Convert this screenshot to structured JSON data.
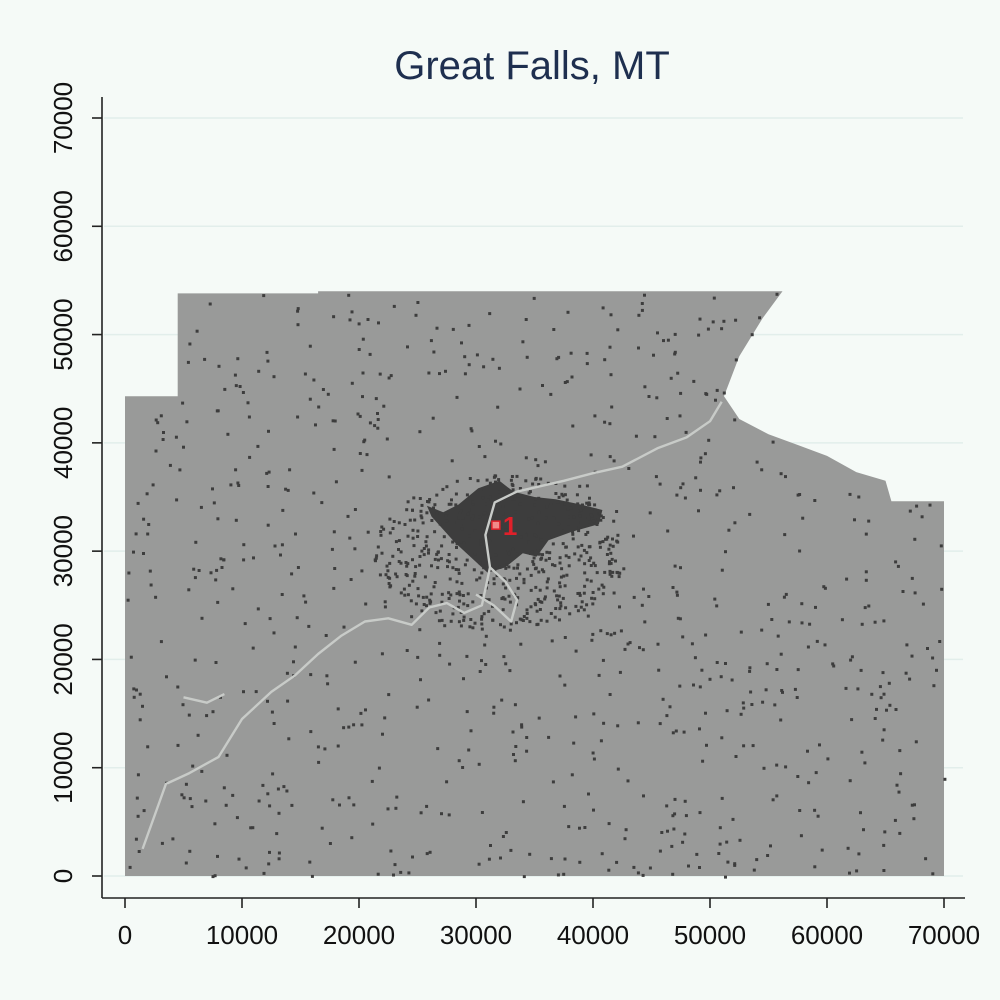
{
  "chart_data": {
    "type": "map",
    "title": "Great Falls, MT",
    "xlim": [
      0,
      70000
    ],
    "ylim": [
      0,
      70000
    ],
    "x_ticks": [
      0,
      10000,
      20000,
      30000,
      40000,
      50000,
      60000,
      70000
    ],
    "y_ticks": [
      0,
      10000,
      20000,
      30000,
      40000,
      50000,
      60000,
      70000
    ],
    "grid": true,
    "region_color": "#999a99",
    "developed_color": "#3d3d3d",
    "water_color": "#c8cbc8",
    "marker_color": "#e0202a",
    "boundary": [
      [
        0,
        44300
      ],
      [
        4500,
        44300
      ],
      [
        4500,
        53800
      ],
      [
        16500,
        53800
      ],
      [
        16500,
        54000
      ],
      [
        56200,
        54000
      ],
      [
        54500,
        51500
      ],
      [
        52500,
        48000
      ],
      [
        51200,
        44300
      ],
      [
        52500,
        42200
      ],
      [
        55000,
        40800
      ],
      [
        57500,
        39800
      ],
      [
        60000,
        38800
      ],
      [
        62500,
        37300
      ],
      [
        65000,
        36500
      ],
      [
        65500,
        34600
      ],
      [
        70000,
        34600
      ],
      [
        70000,
        0
      ],
      [
        0,
        0
      ]
    ],
    "urban_core": [
      [
        25800,
        34200
      ],
      [
        27200,
        33600
      ],
      [
        28500,
        34300
      ],
      [
        30200,
        35800
      ],
      [
        32000,
        36500
      ],
      [
        33200,
        35500
      ],
      [
        35000,
        35000
      ],
      [
        36800,
        34800
      ],
      [
        39000,
        34300
      ],
      [
        40800,
        33800
      ],
      [
        40500,
        32500
      ],
      [
        38200,
        31800
      ],
      [
        36200,
        31000
      ],
      [
        35200,
        29500
      ],
      [
        34000,
        29800
      ],
      [
        32500,
        28500
      ],
      [
        31000,
        28000
      ],
      [
        29500,
        29500
      ],
      [
        28200,
        30800
      ],
      [
        27200,
        32000
      ],
      [
        26200,
        33200
      ]
    ],
    "rivers": [
      [
        [
          1500,
          2500
        ],
        [
          2500,
          5500
        ],
        [
          3500,
          8500
        ],
        [
          5500,
          9500
        ],
        [
          8000,
          11000
        ],
        [
          10000,
          14500
        ],
        [
          12500,
          17000
        ],
        [
          14500,
          18500
        ],
        [
          16500,
          20500
        ],
        [
          18500,
          22200
        ],
        [
          20500,
          23500
        ],
        [
          22500,
          23800
        ],
        [
          24500,
          23200
        ],
        [
          26000,
          24800
        ],
        [
          27500,
          25200
        ],
        [
          29000,
          24300
        ],
        [
          30500,
          25000
        ],
        [
          31200,
          28500
        ],
        [
          30800,
          31500
        ],
        [
          31600,
          34500
        ],
        [
          33500,
          35500
        ],
        [
          35500,
          36000
        ],
        [
          37500,
          36500
        ],
        [
          40000,
          37200
        ],
        [
          42500,
          37800
        ],
        [
          45500,
          39500
        ],
        [
          48000,
          40500
        ],
        [
          50000,
          42000
        ],
        [
          51000,
          43800
        ]
      ],
      [
        [
          30000,
          26000
        ],
        [
          31500,
          25000
        ],
        [
          33000,
          23500
        ],
        [
          33500,
          25500
        ],
        [
          32500,
          27200
        ],
        [
          31200,
          28500
        ]
      ],
      [
        [
          5000,
          16500
        ],
        [
          7000,
          16000
        ],
        [
          8500,
          16800
        ]
      ]
    ],
    "markers": [
      {
        "label": "1",
        "x": 31700,
        "y": 32400
      }
    ]
  }
}
